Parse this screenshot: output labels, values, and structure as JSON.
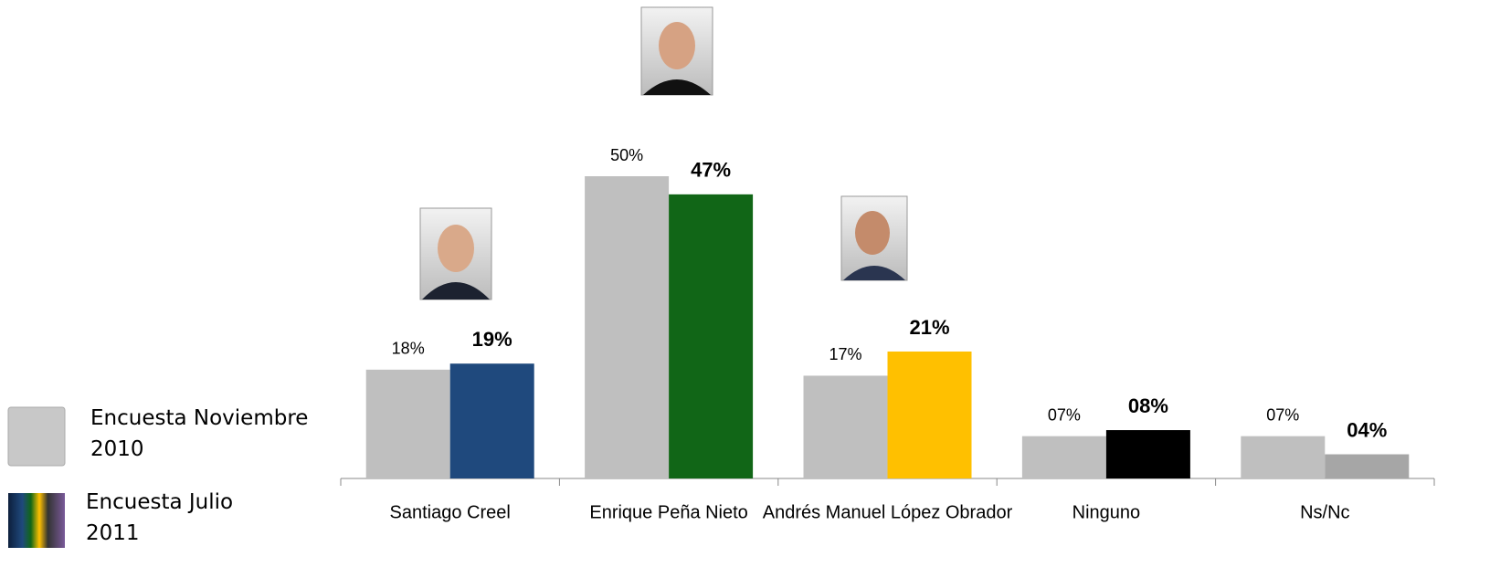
{
  "chart_data": {
    "type": "bar",
    "categories": [
      "Santiago Creel",
      "Enrique Peña Nieto",
      "Andrés Manuel López Obrador",
      "Ninguno",
      "Ns/Nc"
    ],
    "series": [
      {
        "name": "Encuesta Noviembre 2010",
        "color": "#bfbfbf",
        "values": [
          18,
          50,
          17,
          7,
          7
        ],
        "value_labels": [
          "18%",
          "50%",
          "17%",
          "07%",
          "07%"
        ]
      },
      {
        "name": "Encuesta Julio 2011",
        "colors": [
          "#1f497d",
          "#116617",
          "#ffc000",
          "#000000",
          "#a6a6a6"
        ],
        "values": [
          19,
          47,
          21,
          8,
          4
        ],
        "value_labels": [
          "19%",
          "47%",
          "21%",
          "08%",
          "04%"
        ]
      }
    ],
    "legend": "left"
  }
}
